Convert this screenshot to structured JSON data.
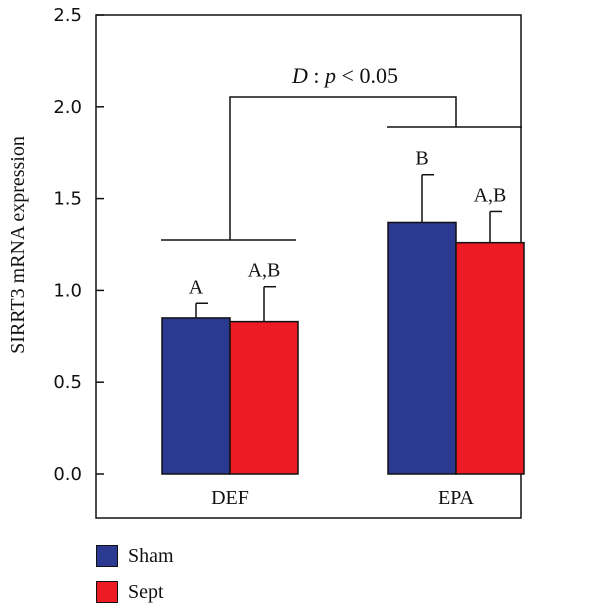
{
  "chart_data": {
    "type": "bar",
    "ylabel": "SIRRT3 mRNA expression",
    "ylim": [
      0,
      2.5
    ],
    "yticks": [
      "0.0",
      "0.5",
      "1.0",
      "1.5",
      "2.0",
      "2.5"
    ],
    "categories": [
      "DEF",
      "EPA"
    ],
    "series": [
      {
        "name": "Sham",
        "color": "#2b3990",
        "values": [
          0.85,
          1.37
        ],
        "errors": [
          0.08,
          0.26
        ],
        "letters": [
          "A",
          "B"
        ]
      },
      {
        "name": "Sept",
        "color": "#ed1c24",
        "values": [
          0.83,
          1.26
        ],
        "errors": [
          0.19,
          0.17
        ],
        "letters": [
          "A,B",
          "A,B"
        ]
      }
    ],
    "annotation": {
      "prefix": "D",
      "sep": " : ",
      "p": "p",
      "rest": " < 0.05"
    },
    "legend_position": "bottom-left",
    "grid": false
  }
}
